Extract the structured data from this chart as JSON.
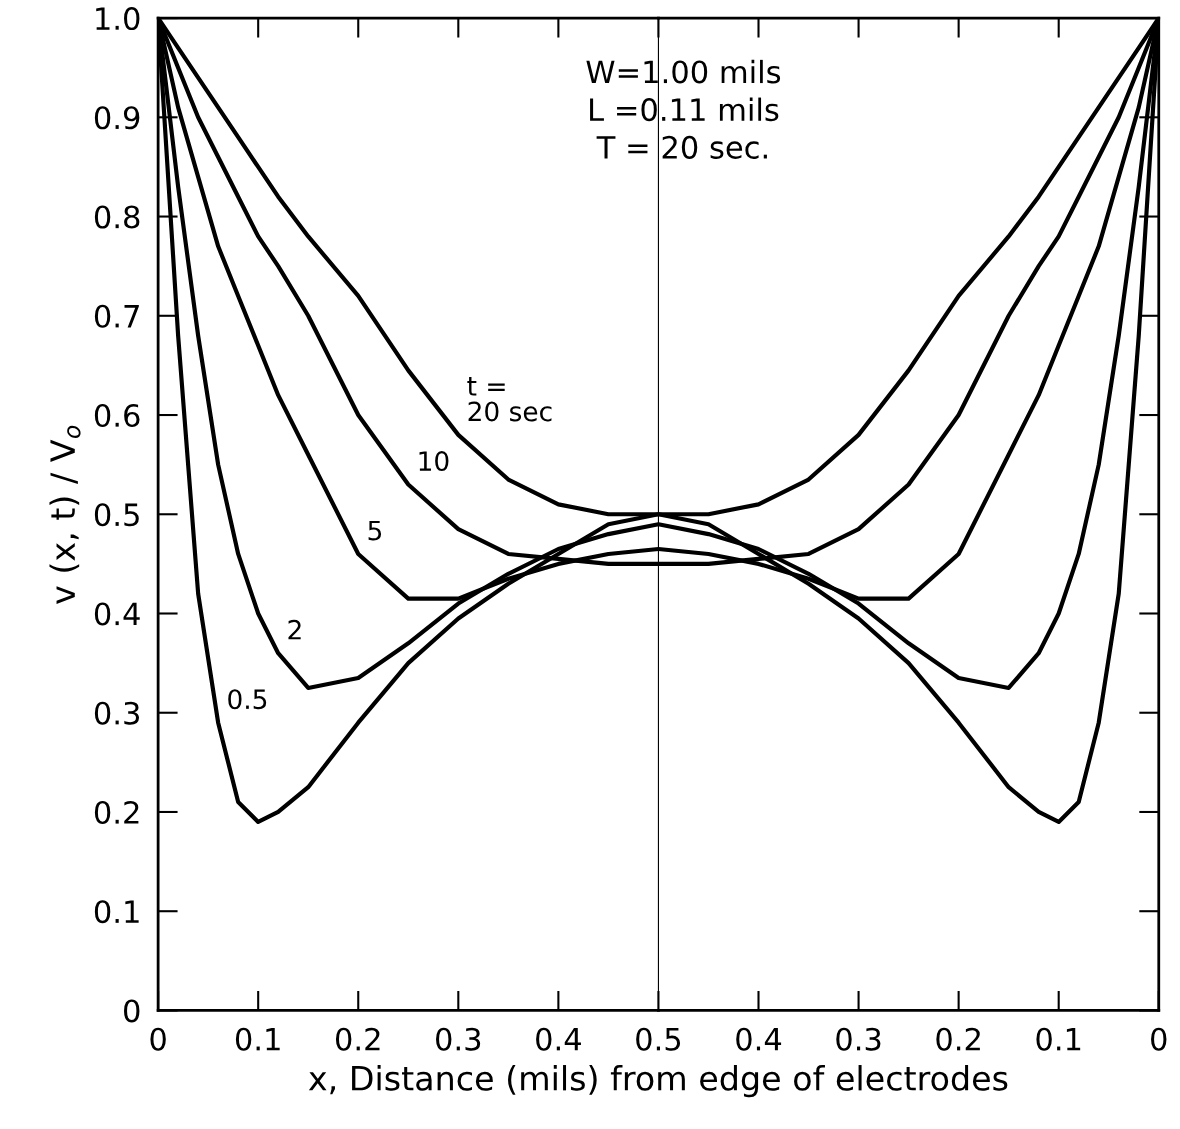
{
  "chart_data": [
    {
      "type": "line",
      "xlabel": "x, Distance (mils) from edge of electrodes",
      "ylabel": "v (x, t) / V$_{o}$",
      "x": [
        0,
        0.02,
        0.04,
        0.06,
        0.08,
        0.1,
        0.12,
        0.15,
        0.2,
        0.25,
        0.3,
        0.35,
        0.4,
        0.45,
        0.5
      ],
      "series": [
        {
          "color": "#000000",
          "values": [
            1,
            0.97,
            0.94,
            0.91,
            0.88,
            0.85,
            0.82,
            0.78,
            0.72,
            0.645,
            0.58,
            0.535,
            0.51,
            0.5,
            0.5
          ]
        },
        {
          "color": "#000000",
          "values": [
            1,
            0.95,
            0.9,
            0.86,
            0.82,
            0.78,
            0.75,
            0.7,
            0.6,
            0.53,
            0.485,
            0.46,
            0.455,
            0.45,
            0.45
          ]
        },
        {
          "color": "#000000",
          "values": [
            1,
            0.91,
            0.84,
            0.77,
            0.72,
            0.67,
            0.62,
            0.56,
            0.46,
            0.415,
            0.415,
            0.435,
            0.45,
            0.46,
            0.465
          ]
        },
        {
          "color": "#000000",
          "values": [
            1,
            0.83,
            0.68,
            0.55,
            0.46,
            0.4,
            0.36,
            0.325,
            0.335,
            0.37,
            0.41,
            0.44,
            0.465,
            0.48,
            0.49
          ]
        },
        {
          "color": "#000000",
          "values": [
            1,
            0.68,
            0.42,
            0.29,
            0.21,
            0.19,
            0.2,
            0.225,
            0.29,
            0.35,
            0.395,
            0.43,
            0.46,
            0.49,
            0.5
          ]
        }
      ],
      "xlim": [
        0,
        0.5
      ],
      "ylim": [
        0,
        1
      ],
      "xticks": [
        0,
        0.1,
        0.2,
        0.3,
        0.4,
        0.5
      ],
      "yticks": [
        0,
        0.1,
        0.2,
        0.3,
        0.4,
        0.5,
        0.6,
        0.7,
        0.8,
        0.9,
        {
          "value": 1,
          "label": "1.0"
        }
      ],
      "annotations": [
        "W=1.00 mils\nL =0.11 mils\nT = 20 sec.",
        {
          "text": "t =\n20 sec",
          "x": 0.3,
          "y": 0.58
        },
        {
          "text": "10",
          "x": 0.25,
          "y": 0.53
        },
        {
          "text": "5",
          "x": 0.2,
          "y": 0.46
        },
        {
          "text": "2",
          "x": 0.12,
          "y": 0.36
        },
        {
          "text": "0.5",
          "x": 0.06,
          "y": 0.29
        }
      ],
      "grid": false,
      "legend": false,
      "marker": "none",
      "line_style": "solid"
    },
    {
      "type": "line",
      "x": [
        0.5,
        0.45,
        0.4,
        0.35,
        0.3,
        0.25,
        0.2,
        0.15,
        0.12,
        0.1,
        0.08,
        0.06,
        0.04,
        0.02,
        0
      ],
      "series": [
        {
          "color": "#000000",
          "values": [
            0.5,
            0.5,
            0.51,
            0.535,
            0.58,
            0.645,
            0.72,
            0.78,
            0.82,
            0.85,
            0.88,
            0.91,
            0.94,
            0.97,
            1
          ]
        },
        {
          "color": "#000000",
          "values": [
            0.45,
            0.45,
            0.455,
            0.46,
            0.485,
            0.53,
            0.6,
            0.7,
            0.75,
            0.78,
            0.82,
            0.86,
            0.9,
            0.95,
            1
          ]
        },
        {
          "color": "#000000",
          "values": [
            0.465,
            0.46,
            0.45,
            0.435,
            0.415,
            0.415,
            0.46,
            0.56,
            0.62,
            0.67,
            0.72,
            0.77,
            0.84,
            0.91,
            1
          ]
        },
        {
          "color": "#000000",
          "values": [
            0.49,
            0.48,
            0.465,
            0.44,
            0.41,
            0.37,
            0.335,
            0.325,
            0.36,
            0.4,
            0.46,
            0.55,
            0.68,
            0.83,
            1
          ]
        },
        {
          "color": "#000000",
          "values": [
            0.5,
            0.49,
            0.46,
            0.43,
            0.395,
            0.35,
            0.29,
            0.225,
            0.2,
            0.19,
            0.21,
            0.29,
            0.42,
            0.68,
            1
          ]
        }
      ],
      "xlim": [
        0.5,
        0
      ],
      "ylim": [
        0,
        1
      ],
      "xticks": [
        0.4,
        0.3,
        0.2,
        0.1,
        0
      ],
      "yticks": [
        0,
        0.1,
        0.2,
        0.3,
        0.4,
        0.5,
        0.6,
        0.7,
        0.8,
        0.9,
        1
      ],
      "tick_labels": "x",
      "grid": false,
      "legend": false,
      "marker": "none",
      "line_style": "solid"
    }
  ]
}
